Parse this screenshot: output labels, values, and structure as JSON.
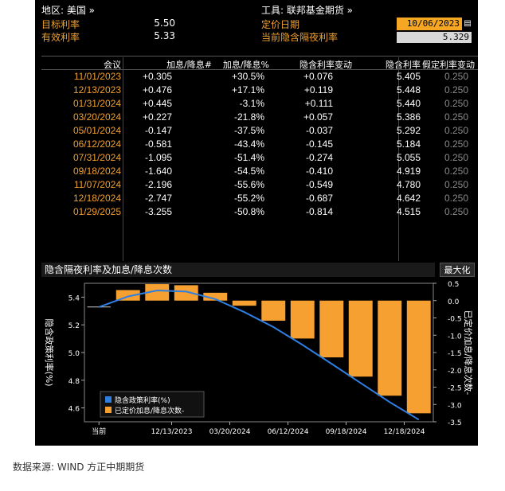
{
  "header": {
    "region_label": "地区: 美国 »",
    "tool_label": "工具: 联邦基金期货 »",
    "target_rate_label": "目标利率",
    "target_rate_value": "5.50",
    "effective_rate_label": "有效利率",
    "effective_rate_value": "5.33",
    "pricing_date_label": "定价日期",
    "pricing_date_value": "10/06/2023",
    "implied_overnight_label": "当前隐含隔夜利率",
    "implied_overnight_value": "5.329"
  },
  "table": {
    "columns": [
      "会议",
      "加息/降息#",
      "加息/降息%",
      "隐含利率变动",
      "隐含利率",
      "假定利率变动"
    ],
    "rows": [
      [
        "11/01/2023",
        "+0.305",
        "+30.5%",
        "+0.076",
        "5.405",
        "0.250"
      ],
      [
        "12/13/2023",
        "+0.476",
        "+17.1%",
        "+0.119",
        "5.448",
        "0.250"
      ],
      [
        "01/31/2024",
        "+0.445",
        "-3.1%",
        "+0.111",
        "5.440",
        "0.250"
      ],
      [
        "03/20/2024",
        "+0.227",
        "-21.8%",
        "+0.057",
        "5.386",
        "0.250"
      ],
      [
        "05/01/2024",
        "-0.147",
        "-37.5%",
        "-0.037",
        "5.292",
        "0.250"
      ],
      [
        "06/12/2024",
        "-0.581",
        "-43.4%",
        "-0.145",
        "5.184",
        "0.250"
      ],
      [
        "07/31/2024",
        "-1.095",
        "-51.4%",
        "-0.274",
        "5.055",
        "0.250"
      ],
      [
        "09/18/2024",
        "-1.640",
        "-54.5%",
        "-0.410",
        "4.919",
        "0.250"
      ],
      [
        "11/07/2024",
        "-2.196",
        "-55.6%",
        "-0.549",
        "4.780",
        "0.250"
      ],
      [
        "12/18/2024",
        "-2.747",
        "-55.2%",
        "-0.687",
        "4.642",
        "0.250"
      ],
      [
        "01/29/2025",
        "-3.255",
        "-50.8%",
        "-0.814",
        "4.515",
        "0.250"
      ]
    ]
  },
  "chart_panel": {
    "title": "隐含隔夜利率及加息/降息次数",
    "maximize_label": "最大化"
  },
  "chart_data": {
    "type": "bar",
    "title": "隐含隔夜利率及加息/降息次数",
    "categories": [
      "当前",
      "11/01/2023",
      "12/13/2023",
      "01/31/2024",
      "03/20/2024",
      "05/01/2024",
      "06/12/2024",
      "07/31/2024",
      "09/18/2024",
      "11/07/2024",
      "12/18/2024",
      "01/29/2025"
    ],
    "x_tick_labels": [
      "当前",
      "12/13/2023",
      "03/20/2024",
      "06/12/2024",
      "09/18/2024",
      "12/18/2024"
    ],
    "series": [
      {
        "name": "隐含政策利率(%)",
        "axis": "left",
        "kind": "line",
        "color": "#2f7fe0",
        "values": [
          5.329,
          5.405,
          5.448,
          5.44,
          5.386,
          5.292,
          5.184,
          5.055,
          4.919,
          4.78,
          4.642,
          4.515
        ]
      },
      {
        "name": "已定价加息/降息次数-",
        "axis": "right",
        "kind": "bar",
        "color": "#f5a030",
        "values": [
          0,
          0.305,
          0.476,
          0.445,
          0.227,
          -0.147,
          -0.581,
          -1.095,
          -1.64,
          -2.196,
          -2.747,
          -3.255
        ]
      }
    ],
    "ylabel_left": "隐含政策利率(%)",
    "ylabel_right": "已定价加息/降息次数-",
    "ylim_left": [
      4.5,
      5.5
    ],
    "yticks_left": [
      "5.4",
      "5.2",
      "5.0",
      "4.8",
      "4.6"
    ],
    "ylim_right": [
      -3.5,
      0.5
    ],
    "yticks_right": [
      "0.5",
      "0.0",
      "-0.5",
      "-1.0",
      "-1.5",
      "-2.0",
      "-2.5",
      "-3.0",
      "-3.5"
    ],
    "grid": false,
    "legend": "bottom-left"
  },
  "footer": {
    "source": "数据来源: WIND 方正中期期货"
  },
  "colors": {
    "background": "#000000",
    "accent_orange": "#f0a030",
    "line_blue": "#2f7fe0",
    "bar_orange": "#f5a030"
  }
}
